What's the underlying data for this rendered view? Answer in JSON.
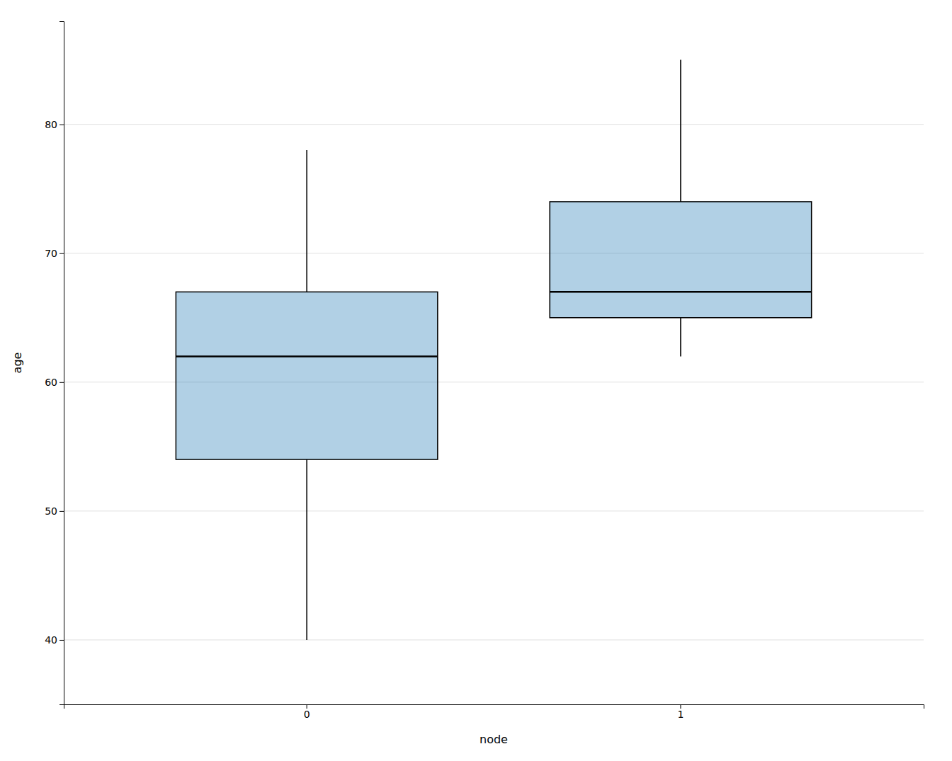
{
  "chart_data": {
    "type": "box",
    "categories": [
      "0",
      "1"
    ],
    "boxes": [
      {
        "whislo": 40,
        "q1": 54,
        "med": 62,
        "q3": 67,
        "whishi": 78
      },
      {
        "whislo": 62,
        "q1": 65,
        "med": 67,
        "q3": 74,
        "whishi": 85
      }
    ],
    "xlabel": "node",
    "ylabel": "age",
    "ylim": [
      35,
      88
    ],
    "yticks": [
      40,
      50,
      60,
      70,
      80
    ],
    "grid": true
  }
}
